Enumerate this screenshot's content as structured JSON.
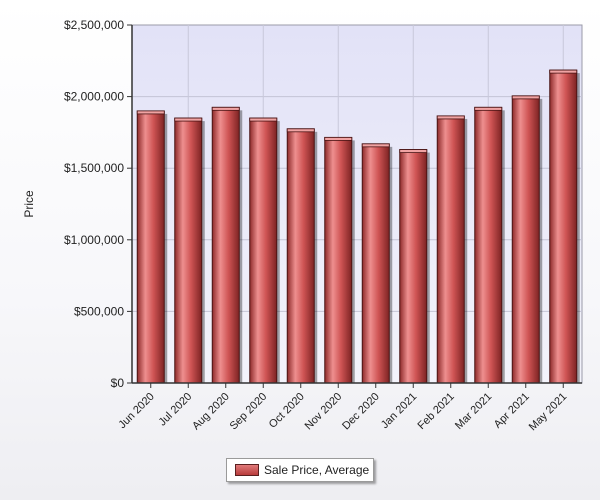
{
  "chart_data": {
    "type": "bar",
    "title": "",
    "xlabel": "",
    "ylabel": "Price",
    "ylim": [
      0,
      2500000
    ],
    "y_ticks": [
      0,
      500000,
      1000000,
      1500000,
      2000000,
      2500000
    ],
    "y_tick_labels": [
      "$0",
      "$500,000",
      "$1,000,000",
      "$1,500,000",
      "$2,000,000",
      "$2,500,000"
    ],
    "categories": [
      "Jun 2020",
      "Jul 2020",
      "Aug 2020",
      "Sep 2020",
      "Oct 2020",
      "Nov 2020",
      "Dec 2020",
      "Jan 2021",
      "Feb 2021",
      "Mar 2021",
      "Apr 2021",
      "May 2021"
    ],
    "series": [
      {
        "name": "Sale Price, Average",
        "color": "#c84a4a",
        "values": [
          1900000,
          1850000,
          1925000,
          1850000,
          1775000,
          1715000,
          1670000,
          1630000,
          1865000,
          1925000,
          2005000,
          2185000
        ]
      }
    ],
    "grid": true,
    "legend_position": "bottom",
    "plot_background": "#e6e6fa"
  }
}
